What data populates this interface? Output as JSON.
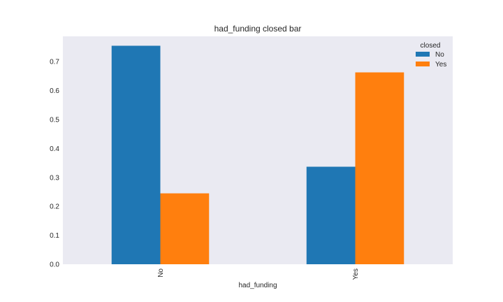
{
  "chart_data": {
    "type": "bar",
    "title": "had_funding closed bar",
    "xlabel": "had_funding",
    "ylabel": "",
    "categories": [
      "No",
      "Yes"
    ],
    "series": [
      {
        "name": "No",
        "values": [
          0.755,
          0.337
        ],
        "color": "#1f77b4"
      },
      {
        "name": "Yes",
        "values": [
          0.245,
          0.663
        ],
        "color": "#ff7f0e"
      }
    ],
    "ylim": [
      0,
      0.7875
    ],
    "yticks": [
      "0.0",
      "0.1",
      "0.2",
      "0.3",
      "0.4",
      "0.5",
      "0.6",
      "0.7"
    ],
    "legend": {
      "title": "closed",
      "placement": "top-right"
    },
    "grid": false,
    "background": "#eaeaf2"
  }
}
